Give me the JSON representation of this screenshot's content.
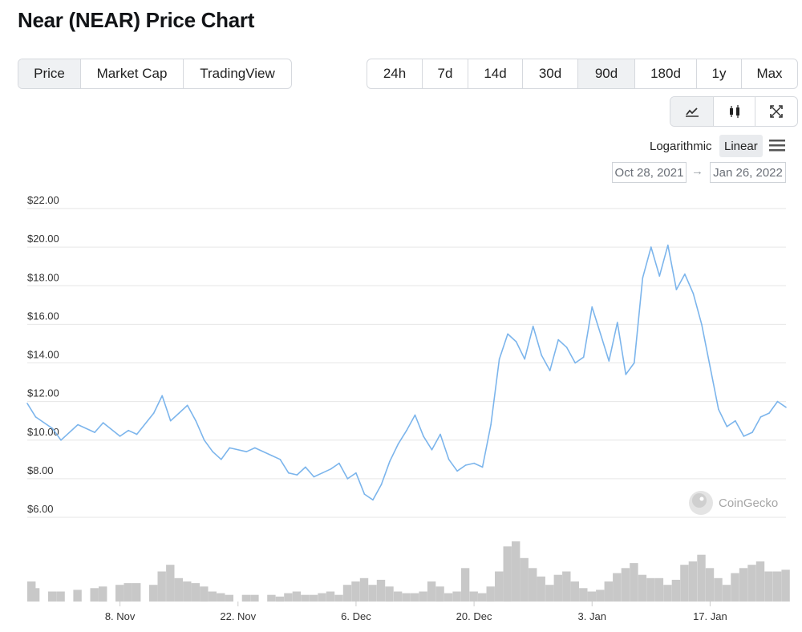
{
  "title": "Near (NEAR) Price Chart",
  "view_tabs": [
    "Price",
    "Market Cap",
    "TradingView"
  ],
  "view_active": "Price",
  "range_tabs": [
    "24h",
    "7d",
    "14d",
    "30d",
    "90d",
    "180d",
    "1y",
    "Max"
  ],
  "range_active": "90d",
  "chart_type_icons": [
    "line-chart-icon",
    "candlestick-icon",
    "expand-icon"
  ],
  "scale": {
    "log_label": "Logarithmic",
    "linear_label": "Linear",
    "active": "Linear"
  },
  "date_range": {
    "from": "Oct 28, 2021",
    "arrow": "→",
    "to": "Jan 26, 2022"
  },
  "watermark": "CoinGecko",
  "colors": {
    "line": "#7cb5ec",
    "volume": "#c8c8c8",
    "grid": "#e6e6e6",
    "active_tab": "#eff1f3"
  },
  "chart_data": {
    "type": "line",
    "title": "Near (NEAR) Price Chart",
    "y_tick_labels": [
      "$22.00",
      "$20.00",
      "$18.00",
      "$16.00",
      "$14.00",
      "$12.00",
      "$10.00",
      "$8.00",
      "$6.00"
    ],
    "y_ticks": [
      22,
      20,
      18,
      16,
      14,
      12,
      10,
      8,
      6
    ],
    "ylim": [
      6,
      22
    ],
    "x_tick_labels": [
      "8. Nov",
      "22. Nov",
      "6. Dec",
      "20. Dec",
      "3. Jan",
      "17. Jan"
    ],
    "x_ticks": [
      "2021-11-08",
      "2021-11-22",
      "2021-12-06",
      "2021-12-20",
      "2022-01-03",
      "2022-01-17"
    ],
    "x_range": [
      "2021-10-28",
      "2022-01-26"
    ],
    "grid": true,
    "series": [
      {
        "type": "line",
        "x": [
          "2021-10-28",
          "2021-10-29",
          "2021-10-31",
          "2021-11-01",
          "2021-11-03",
          "2021-11-05",
          "2021-11-06",
          "2021-11-08",
          "2021-11-09",
          "2021-11-10",
          "2021-11-12",
          "2021-11-13",
          "2021-11-14",
          "2021-11-15",
          "2021-11-16",
          "2021-11-17",
          "2021-11-18",
          "2021-11-19",
          "2021-11-20",
          "2021-11-21",
          "2021-11-23",
          "2021-11-24",
          "2021-11-26",
          "2021-11-27",
          "2021-11-28",
          "2021-11-29",
          "2021-11-30",
          "2021-12-01",
          "2021-12-02",
          "2021-12-03",
          "2021-12-04",
          "2021-12-05",
          "2021-12-06",
          "2021-12-07",
          "2021-12-08",
          "2021-12-09",
          "2021-12-10",
          "2021-12-11",
          "2021-12-12",
          "2021-12-13",
          "2021-12-14",
          "2021-12-15",
          "2021-12-16",
          "2021-12-17",
          "2021-12-18",
          "2021-12-19",
          "2021-12-20",
          "2021-12-21",
          "2021-12-22",
          "2021-12-23",
          "2021-12-24",
          "2021-12-25",
          "2021-12-26",
          "2021-12-27",
          "2021-12-28",
          "2021-12-29",
          "2021-12-30",
          "2021-12-31",
          "2022-01-01",
          "2022-01-02",
          "2022-01-03",
          "2022-01-04",
          "2022-01-05",
          "2022-01-06",
          "2022-01-07",
          "2022-01-08",
          "2022-01-09",
          "2022-01-10",
          "2022-01-11",
          "2022-01-12",
          "2022-01-13",
          "2022-01-14",
          "2022-01-15",
          "2022-01-16",
          "2022-01-17",
          "2022-01-18",
          "2022-01-19",
          "2022-01-20",
          "2022-01-21",
          "2022-01-22",
          "2022-01-23",
          "2022-01-24",
          "2022-01-25",
          "2022-01-26"
        ],
        "values": [
          11.9,
          11.2,
          10.6,
          10.0,
          10.8,
          10.4,
          10.9,
          10.2,
          10.5,
          10.3,
          11.4,
          12.3,
          11.0,
          11.4,
          11.8,
          11.0,
          10.0,
          9.4,
          9.0,
          9.6,
          9.4,
          9.6,
          9.2,
          9.0,
          8.3,
          8.2,
          8.6,
          8.1,
          8.3,
          8.5,
          8.8,
          8.0,
          8.3,
          7.2,
          6.9,
          7.7,
          8.9,
          9.8,
          10.5,
          11.3,
          10.2,
          9.5,
          10.3,
          9.0,
          8.4,
          8.7,
          8.8,
          8.6,
          10.8,
          14.2,
          15.5,
          15.1,
          14.2,
          15.9,
          14.4,
          13.6,
          15.2,
          14.8,
          14.0,
          14.3,
          16.9,
          15.5,
          14.1,
          16.1,
          13.4,
          14.0,
          18.4,
          20.0,
          18.5,
          20.1,
          17.8,
          18.6,
          17.6,
          16.0,
          13.8,
          11.6,
          10.7,
          11.0,
          10.2,
          10.4,
          11.2,
          11.4,
          12.0,
          11.7
        ]
      },
      {
        "type": "volume",
        "values": [
          1.2,
          0.8,
          0.6,
          0.6,
          0.7,
          0.8,
          0.9,
          1.0,
          1.1,
          1.1,
          1.0,
          1.8,
          2.2,
          1.4,
          1.2,
          1.1,
          0.9,
          0.6,
          0.5,
          0.4,
          0.4,
          0.4,
          0.4,
          0.3,
          0.5,
          0.6,
          0.4,
          0.4,
          0.5,
          0.6,
          0.4,
          1.0,
          1.2,
          1.4,
          1.0,
          1.3,
          0.9,
          0.6,
          0.5,
          0.5,
          0.6,
          1.2,
          0.9,
          0.5,
          0.6,
          2.0,
          0.6,
          0.5,
          0.9,
          1.8,
          3.3,
          3.6,
          2.6,
          2.0,
          1.5,
          1.0,
          1.6,
          1.8,
          1.2,
          0.8,
          0.6,
          0.7,
          1.2,
          1.7,
          2.0,
          2.3,
          1.6,
          1.4,
          1.4,
          1.0,
          1.3,
          2.2,
          2.4,
          2.8,
          2.0,
          1.4,
          1.0,
          1.7,
          2.0,
          2.2,
          2.4,
          1.8,
          1.8,
          1.9
        ]
      }
    ]
  }
}
